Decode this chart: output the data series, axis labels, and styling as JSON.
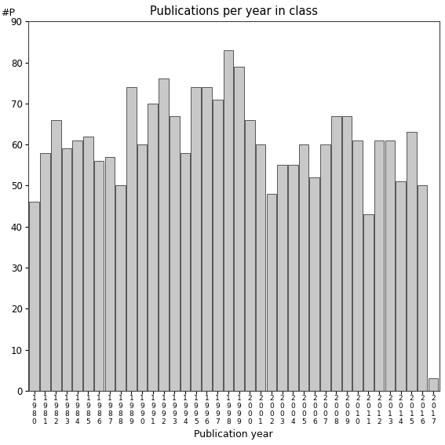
{
  "title": "Publications per year in class",
  "xlabel": "Publication year",
  "ylabel": "#P",
  "bar_color": "#c8c8c8",
  "bar_edgecolor": "#404040",
  "background_color": "#ffffff",
  "ylim": [
    0,
    90
  ],
  "yticks": [
    0,
    10,
    20,
    30,
    40,
    50,
    60,
    70,
    80,
    90
  ],
  "years": [
    1980,
    1981,
    1982,
    1983,
    1984,
    1985,
    1986,
    1987,
    1988,
    1989,
    1990,
    1991,
    1992,
    1993,
    1994,
    1995,
    1996,
    1997,
    1998,
    1999,
    2000,
    2001,
    2002,
    2003,
    2004,
    2005,
    2006,
    2007,
    2008,
    2009,
    2010,
    2011,
    2012,
    2013,
    2014,
    2015,
    2016,
    2017
  ],
  "values": [
    46,
    58,
    66,
    59,
    61,
    62,
    56,
    57,
    50,
    74,
    60,
    70,
    76,
    67,
    58,
    74,
    74,
    71,
    83,
    79,
    66,
    60,
    48,
    55,
    55,
    60,
    52,
    60,
    67,
    67,
    61,
    43,
    61,
    61,
    51,
    63,
    50,
    3
  ]
}
